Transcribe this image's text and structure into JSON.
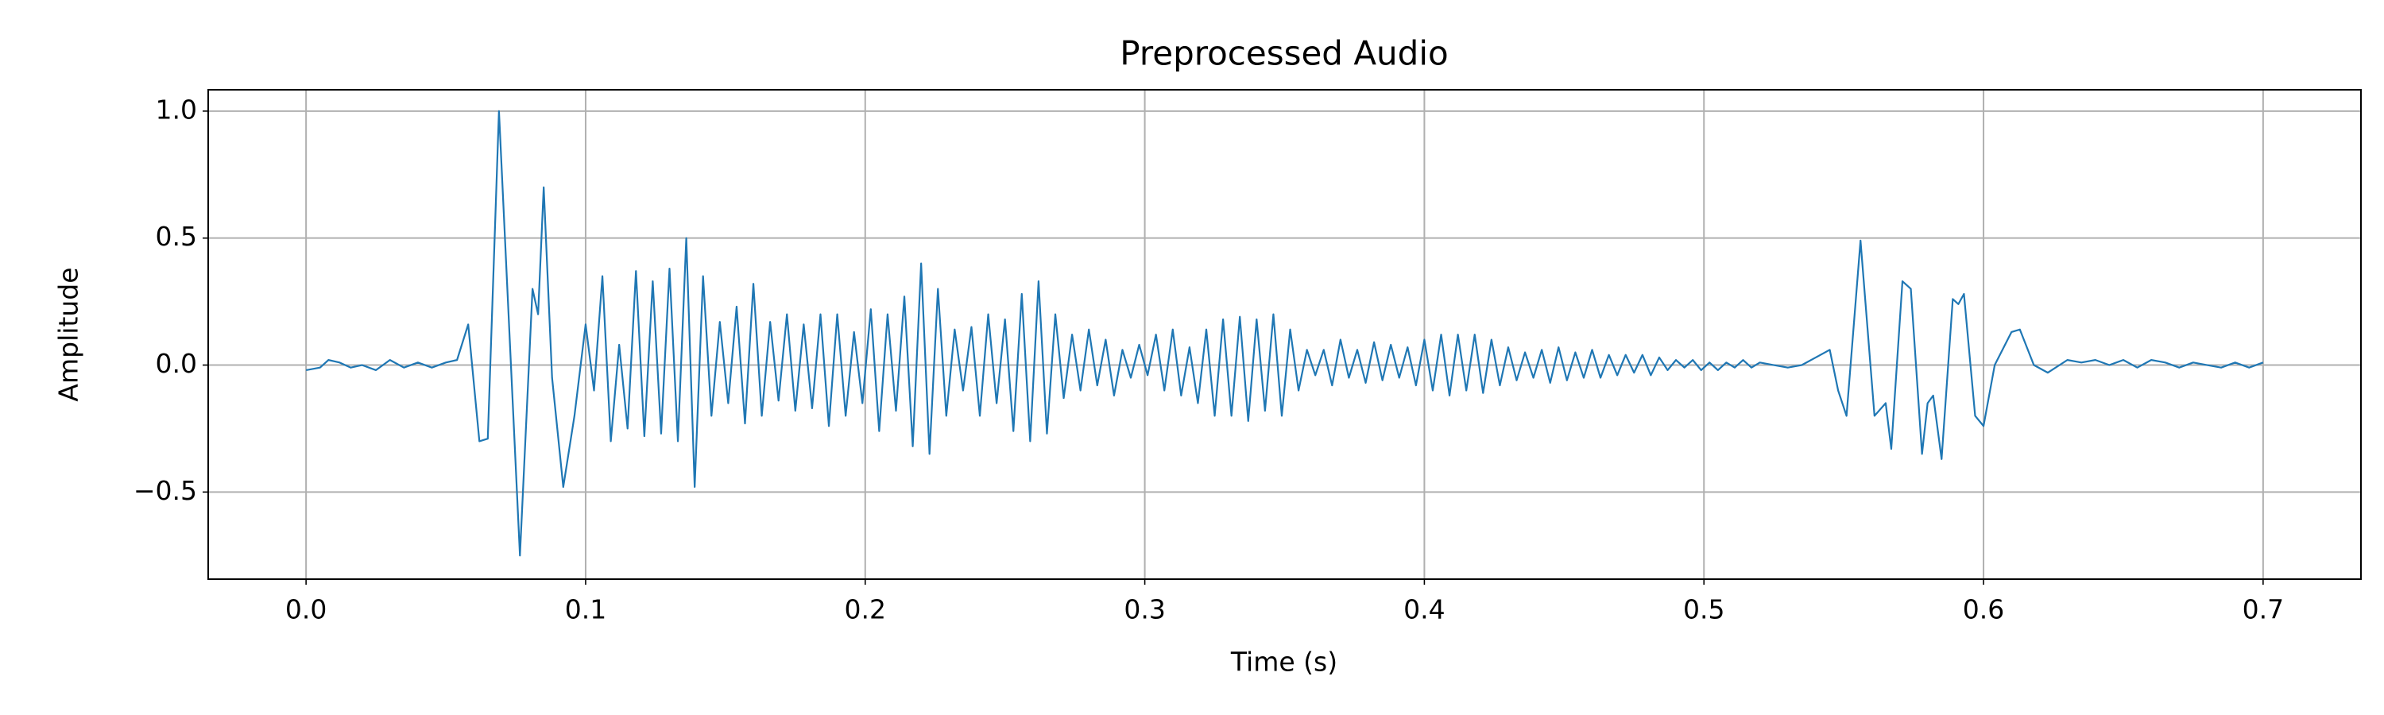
{
  "chart_data": {
    "type": "line",
    "title": "Preprocessed Audio",
    "xlabel": "Time (s)",
    "ylabel": "Amplitude",
    "color": "#1f77b4",
    "grid": true,
    "xlim": [
      -0.035,
      0.735
    ],
    "ylim": [
      -0.843,
      1.084
    ],
    "xticks": [
      {
        "value": 0.0,
        "label": "0.0"
      },
      0.1,
      0.2,
      0.3,
      0.4,
      0.5,
      0.6,
      0.7
    ],
    "yticks": [
      {
        "value": -0.5,
        "label": "−0.5"
      },
      {
        "value": 0.0,
        "label": "0.0"
      },
      0.5,
      {
        "value": 1.0,
        "label": "1.0"
      }
    ],
    "x": [
      0.0,
      0.005,
      0.008,
      0.012,
      0.016,
      0.02,
      0.025,
      0.03,
      0.035,
      0.04,
      0.045,
      0.05,
      0.054,
      0.058,
      0.062,
      0.065,
      0.069,
      0.0765,
      0.081,
      0.083,
      0.085,
      0.088,
      0.092,
      0.096,
      0.1,
      0.103,
      0.106,
      0.109,
      0.112,
      0.115,
      0.118,
      0.121,
      0.124,
      0.127,
      0.13,
      0.133,
      0.136,
      0.139,
      0.142,
      0.145,
      0.148,
      0.151,
      0.154,
      0.157,
      0.16,
      0.163,
      0.166,
      0.169,
      0.172,
      0.175,
      0.178,
      0.181,
      0.184,
      0.187,
      0.19,
      0.193,
      0.196,
      0.199,
      0.202,
      0.205,
      0.208,
      0.211,
      0.214,
      0.217,
      0.22,
      0.223,
      0.226,
      0.229,
      0.232,
      0.235,
      0.238,
      0.241,
      0.244,
      0.247,
      0.25,
      0.253,
      0.256,
      0.259,
      0.262,
      0.265,
      0.268,
      0.271,
      0.274,
      0.277,
      0.28,
      0.283,
      0.286,
      0.289,
      0.292,
      0.295,
      0.298,
      0.301,
      0.304,
      0.307,
      0.31,
      0.313,
      0.316,
      0.319,
      0.322,
      0.325,
      0.328,
      0.331,
      0.334,
      0.337,
      0.34,
      0.343,
      0.346,
      0.349,
      0.352,
      0.355,
      0.358,
      0.361,
      0.364,
      0.367,
      0.37,
      0.373,
      0.376,
      0.379,
      0.382,
      0.385,
      0.388,
      0.391,
      0.394,
      0.397,
      0.4,
      0.403,
      0.406,
      0.409,
      0.412,
      0.415,
      0.418,
      0.421,
      0.424,
      0.427,
      0.43,
      0.433,
      0.436,
      0.439,
      0.442,
      0.445,
      0.448,
      0.451,
      0.454,
      0.457,
      0.46,
      0.463,
      0.466,
      0.469,
      0.472,
      0.475,
      0.478,
      0.481,
      0.484,
      0.487,
      0.49,
      0.493,
      0.496,
      0.499,
      0.502,
      0.505,
      0.508,
      0.511,
      0.514,
      0.517,
      0.52,
      0.525,
      0.53,
      0.535,
      0.54,
      0.545,
      0.548,
      0.551,
      0.556,
      0.561,
      0.565,
      0.567,
      0.571,
      0.574,
      0.578,
      0.58,
      0.582,
      0.585,
      0.589,
      0.591,
      0.593,
      0.597,
      0.6,
      0.604,
      0.61,
      0.613,
      0.618,
      0.623,
      0.63,
      0.635,
      0.64,
      0.645,
      0.65,
      0.655,
      0.66,
      0.665,
      0.67,
      0.675,
      0.68,
      0.685,
      0.69,
      0.695,
      0.7
    ],
    "values": [
      -0.02,
      -0.01,
      0.02,
      0.01,
      -0.01,
      0,
      -0.02,
      0.02,
      -0.01,
      0.01,
      -0.01,
      0.01,
      0.02,
      0.16,
      -0.3,
      -0.29,
      1.0,
      -0.75,
      0.3,
      0.2,
      0.7,
      -0.05,
      -0.48,
      -0.2,
      0.16,
      -0.1,
      0.35,
      -0.3,
      0.08,
      -0.25,
      0.37,
      -0.28,
      0.33,
      -0.27,
      0.38,
      -0.3,
      0.5,
      -0.48,
      0.35,
      -0.2,
      0.17,
      -0.15,
      0.23,
      -0.23,
      0.32,
      -0.2,
      0.17,
      -0.14,
      0.2,
      -0.18,
      0.16,
      -0.17,
      0.2,
      -0.24,
      0.2,
      -0.2,
      0.13,
      -0.15,
      0.22,
      -0.26,
      0.2,
      -0.18,
      0.27,
      -0.32,
      0.4,
      -0.35,
      0.3,
      -0.2,
      0.14,
      -0.1,
      0.15,
      -0.2,
      0.2,
      -0.15,
      0.18,
      -0.26,
      0.28,
      -0.3,
      0.33,
      -0.27,
      0.2,
      -0.13,
      0.12,
      -0.1,
      0.14,
      -0.08,
      0.1,
      -0.12,
      0.06,
      -0.05,
      0.08,
      -0.04,
      0.12,
      -0.1,
      0.14,
      -0.12,
      0.07,
      -0.15,
      0.14,
      -0.2,
      0.18,
      -0.2,
      0.19,
      -0.22,
      0.18,
      -0.18,
      0.2,
      -0.2,
      0.14,
      -0.1,
      0.06,
      -0.04,
      0.06,
      -0.08,
      0.1,
      -0.05,
      0.06,
      -0.07,
      0.09,
      -0.06,
      0.08,
      -0.05,
      0.07,
      -0.08,
      0.1,
      -0.1,
      0.12,
      -0.12,
      0.12,
      -0.1,
      0.12,
      -0.11,
      0.1,
      -0.08,
      0.07,
      -0.06,
      0.05,
      -0.05,
      0.06,
      -0.07,
      0.07,
      -0.06,
      0.05,
      -0.05,
      0.06,
      -0.05,
      0.04,
      -0.04,
      0.04,
      -0.03,
      0.04,
      -0.04,
      0.03,
      -0.02,
      0.02,
      -0.01,
      0.02,
      -0.02,
      0.01,
      -0.02,
      0.01,
      -0.01,
      0.02,
      -0.01,
      0.01,
      0.0,
      -0.01,
      0.0,
      0.03,
      0.06,
      -0.1,
      -0.2,
      0.49,
      -0.2,
      -0.15,
      -0.33,
      0.33,
      0.3,
      -0.35,
      -0.15,
      -0.12,
      -0.37,
      0.26,
      0.24,
      0.28,
      -0.2,
      -0.24,
      0.0,
      0.13,
      0.14,
      0.0,
      -0.03,
      0.02,
      0.01,
      0.02,
      0.0,
      0.02,
      -0.01,
      0.02,
      0.01,
      -0.01,
      0.01,
      0.0,
      -0.01,
      0.01,
      -0.01,
      0.01
    ]
  }
}
